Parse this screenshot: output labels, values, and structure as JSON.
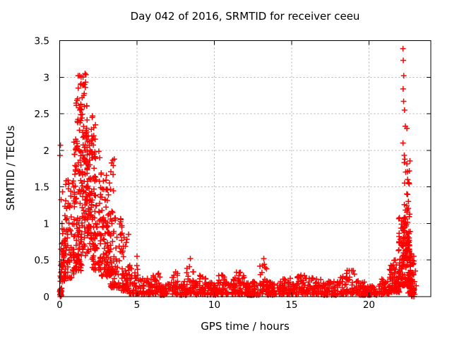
{
  "chart_data": {
    "type": "scatter",
    "title": "Day 042 of 2016, SRMTID for receiver ceeu",
    "xlabel": "GPS time / hours",
    "ylabel": "SRMTID / TECUs",
    "xlim": [
      0,
      24
    ],
    "ylim": [
      0,
      3.5
    ],
    "xticks": [
      0,
      5,
      10,
      15,
      20
    ],
    "yticks": [
      0,
      0.5,
      1,
      1.5,
      2,
      2.5,
      3,
      3.5
    ],
    "grid": true,
    "legend": "none",
    "marker": "plus",
    "marker_color": "#ff0000",
    "grid_color": "#b0b0b0",
    "border_color": "#000000",
    "text_color": "#000000",
    "background_color": "#ffffff",
    "seed": 1337,
    "point_segments": [
      [
        0.0,
        0.15,
        25,
        0.0,
        0.12,
        1.0
      ],
      [
        0.02,
        0.42,
        45,
        0.2,
        0.85,
        1.2
      ],
      [
        0.05,
        0.5,
        14,
        0.85,
        1.75,
        1.2
      ],
      [
        0.35,
        0.95,
        60,
        0.25,
        1.6,
        1.7
      ],
      [
        0.9,
        1.45,
        110,
        0.35,
        2.15,
        1.25
      ],
      [
        1.05,
        1.8,
        30,
        2.15,
        2.7,
        1.0
      ],
      [
        1.45,
        2.1,
        130,
        0.55,
        2.2,
        0.9
      ],
      [
        1.1,
        1.9,
        12,
        2.7,
        3.06,
        1.0
      ],
      [
        2.0,
        2.35,
        8,
        2.0,
        2.5,
        1.0
      ],
      [
        2.1,
        2.7,
        90,
        0.35,
        2.0,
        1.3
      ],
      [
        2.7,
        3.3,
        70,
        0.25,
        1.6,
        1.4
      ],
      [
        2.95,
        3.55,
        40,
        0.15,
        1.9,
        1.6
      ],
      [
        3.3,
        4.1,
        60,
        0.12,
        1.1,
        1.5
      ],
      [
        4.0,
        4.5,
        40,
        0.08,
        1.0,
        1.8
      ],
      [
        4.4,
        5.2,
        60,
        0.04,
        0.45,
        1.9
      ],
      [
        5.2,
        6.0,
        45,
        0.03,
        0.25,
        1.6
      ],
      [
        6.0,
        6.5,
        30,
        0.03,
        0.33,
        1.6
      ],
      [
        6.5,
        7.2,
        40,
        0.02,
        0.22,
        1.6
      ],
      [
        7.2,
        7.7,
        30,
        0.03,
        0.34,
        1.5
      ],
      [
        7.7,
        8.2,
        30,
        0.02,
        0.22,
        1.6
      ],
      [
        8.2,
        8.7,
        32,
        0.04,
        0.5,
        1.7
      ],
      [
        8.7,
        9.0,
        18,
        0.02,
        0.2,
        1.5
      ],
      [
        9.0,
        9.5,
        30,
        0.03,
        0.3,
        1.6
      ],
      [
        9.5,
        10.2,
        40,
        0.02,
        0.2,
        1.6
      ],
      [
        10.2,
        10.7,
        30,
        0.03,
        0.3,
        1.6
      ],
      [
        10.7,
        11.4,
        40,
        0.03,
        0.27,
        1.6
      ],
      [
        11.4,
        12.1,
        42,
        0.03,
        0.34,
        1.6
      ],
      [
        12.1,
        12.9,
        45,
        0.02,
        0.24,
        1.6
      ],
      [
        12.9,
        13.4,
        30,
        0.04,
        0.5,
        1.7
      ],
      [
        13.4,
        14.3,
        50,
        0.02,
        0.22,
        1.6
      ],
      [
        14.3,
        15.3,
        55,
        0.03,
        0.25,
        1.6
      ],
      [
        15.3,
        16.0,
        40,
        0.03,
        0.3,
        1.6
      ],
      [
        16.0,
        17.0,
        55,
        0.03,
        0.26,
        1.6
      ],
      [
        17.0,
        17.9,
        50,
        0.02,
        0.22,
        1.6
      ],
      [
        17.9,
        18.4,
        28,
        0.03,
        0.28,
        1.6
      ],
      [
        18.4,
        19.3,
        50,
        0.04,
        0.36,
        1.6
      ],
      [
        19.3,
        19.8,
        28,
        0.02,
        0.2,
        1.6
      ],
      [
        19.8,
        20.6,
        40,
        0.02,
        0.15,
        1.5
      ],
      [
        20.6,
        21.3,
        40,
        0.03,
        0.24,
        1.5
      ],
      [
        21.3,
        22.0,
        70,
        0.06,
        0.5,
        1.6
      ],
      [
        21.9,
        22.5,
        90,
        0.15,
        1.1,
        1.7
      ],
      [
        22.2,
        22.65,
        60,
        0.5,
        2.15,
        1.5
      ],
      [
        22.45,
        22.75,
        45,
        0.05,
        0.9,
        1.2
      ],
      [
        22.6,
        22.95,
        35,
        0.02,
        0.5,
        1.4
      ],
      [
        22.75,
        22.95,
        20,
        0.0,
        0.12,
        1.0
      ]
    ],
    "outlier_points": [
      [
        0.05,
        2.07
      ],
      [
        0.02,
        1.93
      ],
      [
        1.19,
        3.02
      ],
      [
        1.51,
        3.0
      ],
      [
        1.64,
        3.05
      ],
      [
        1.2,
        2.85
      ],
      [
        1.35,
        2.9
      ],
      [
        1.3,
        2.55
      ],
      [
        1.45,
        2.72
      ],
      [
        1.6,
        2.6
      ],
      [
        2.1,
        2.45
      ],
      [
        2.2,
        2.2
      ],
      [
        5.0,
        0.55
      ],
      [
        8.45,
        0.52
      ],
      [
        13.2,
        0.52
      ],
      [
        22.2,
        3.39
      ],
      [
        22.22,
        3.23
      ],
      [
        22.25,
        3.02
      ],
      [
        22.21,
        2.84
      ],
      [
        22.24,
        2.67
      ],
      [
        22.3,
        2.55
      ],
      [
        22.35,
        2.33
      ],
      [
        22.45,
        2.3
      ],
      [
        22.2,
        2.1
      ],
      [
        22.9,
        0.55
      ],
      [
        23.0,
        0.35
      ],
      [
        23.05,
        0.15
      ]
    ]
  }
}
